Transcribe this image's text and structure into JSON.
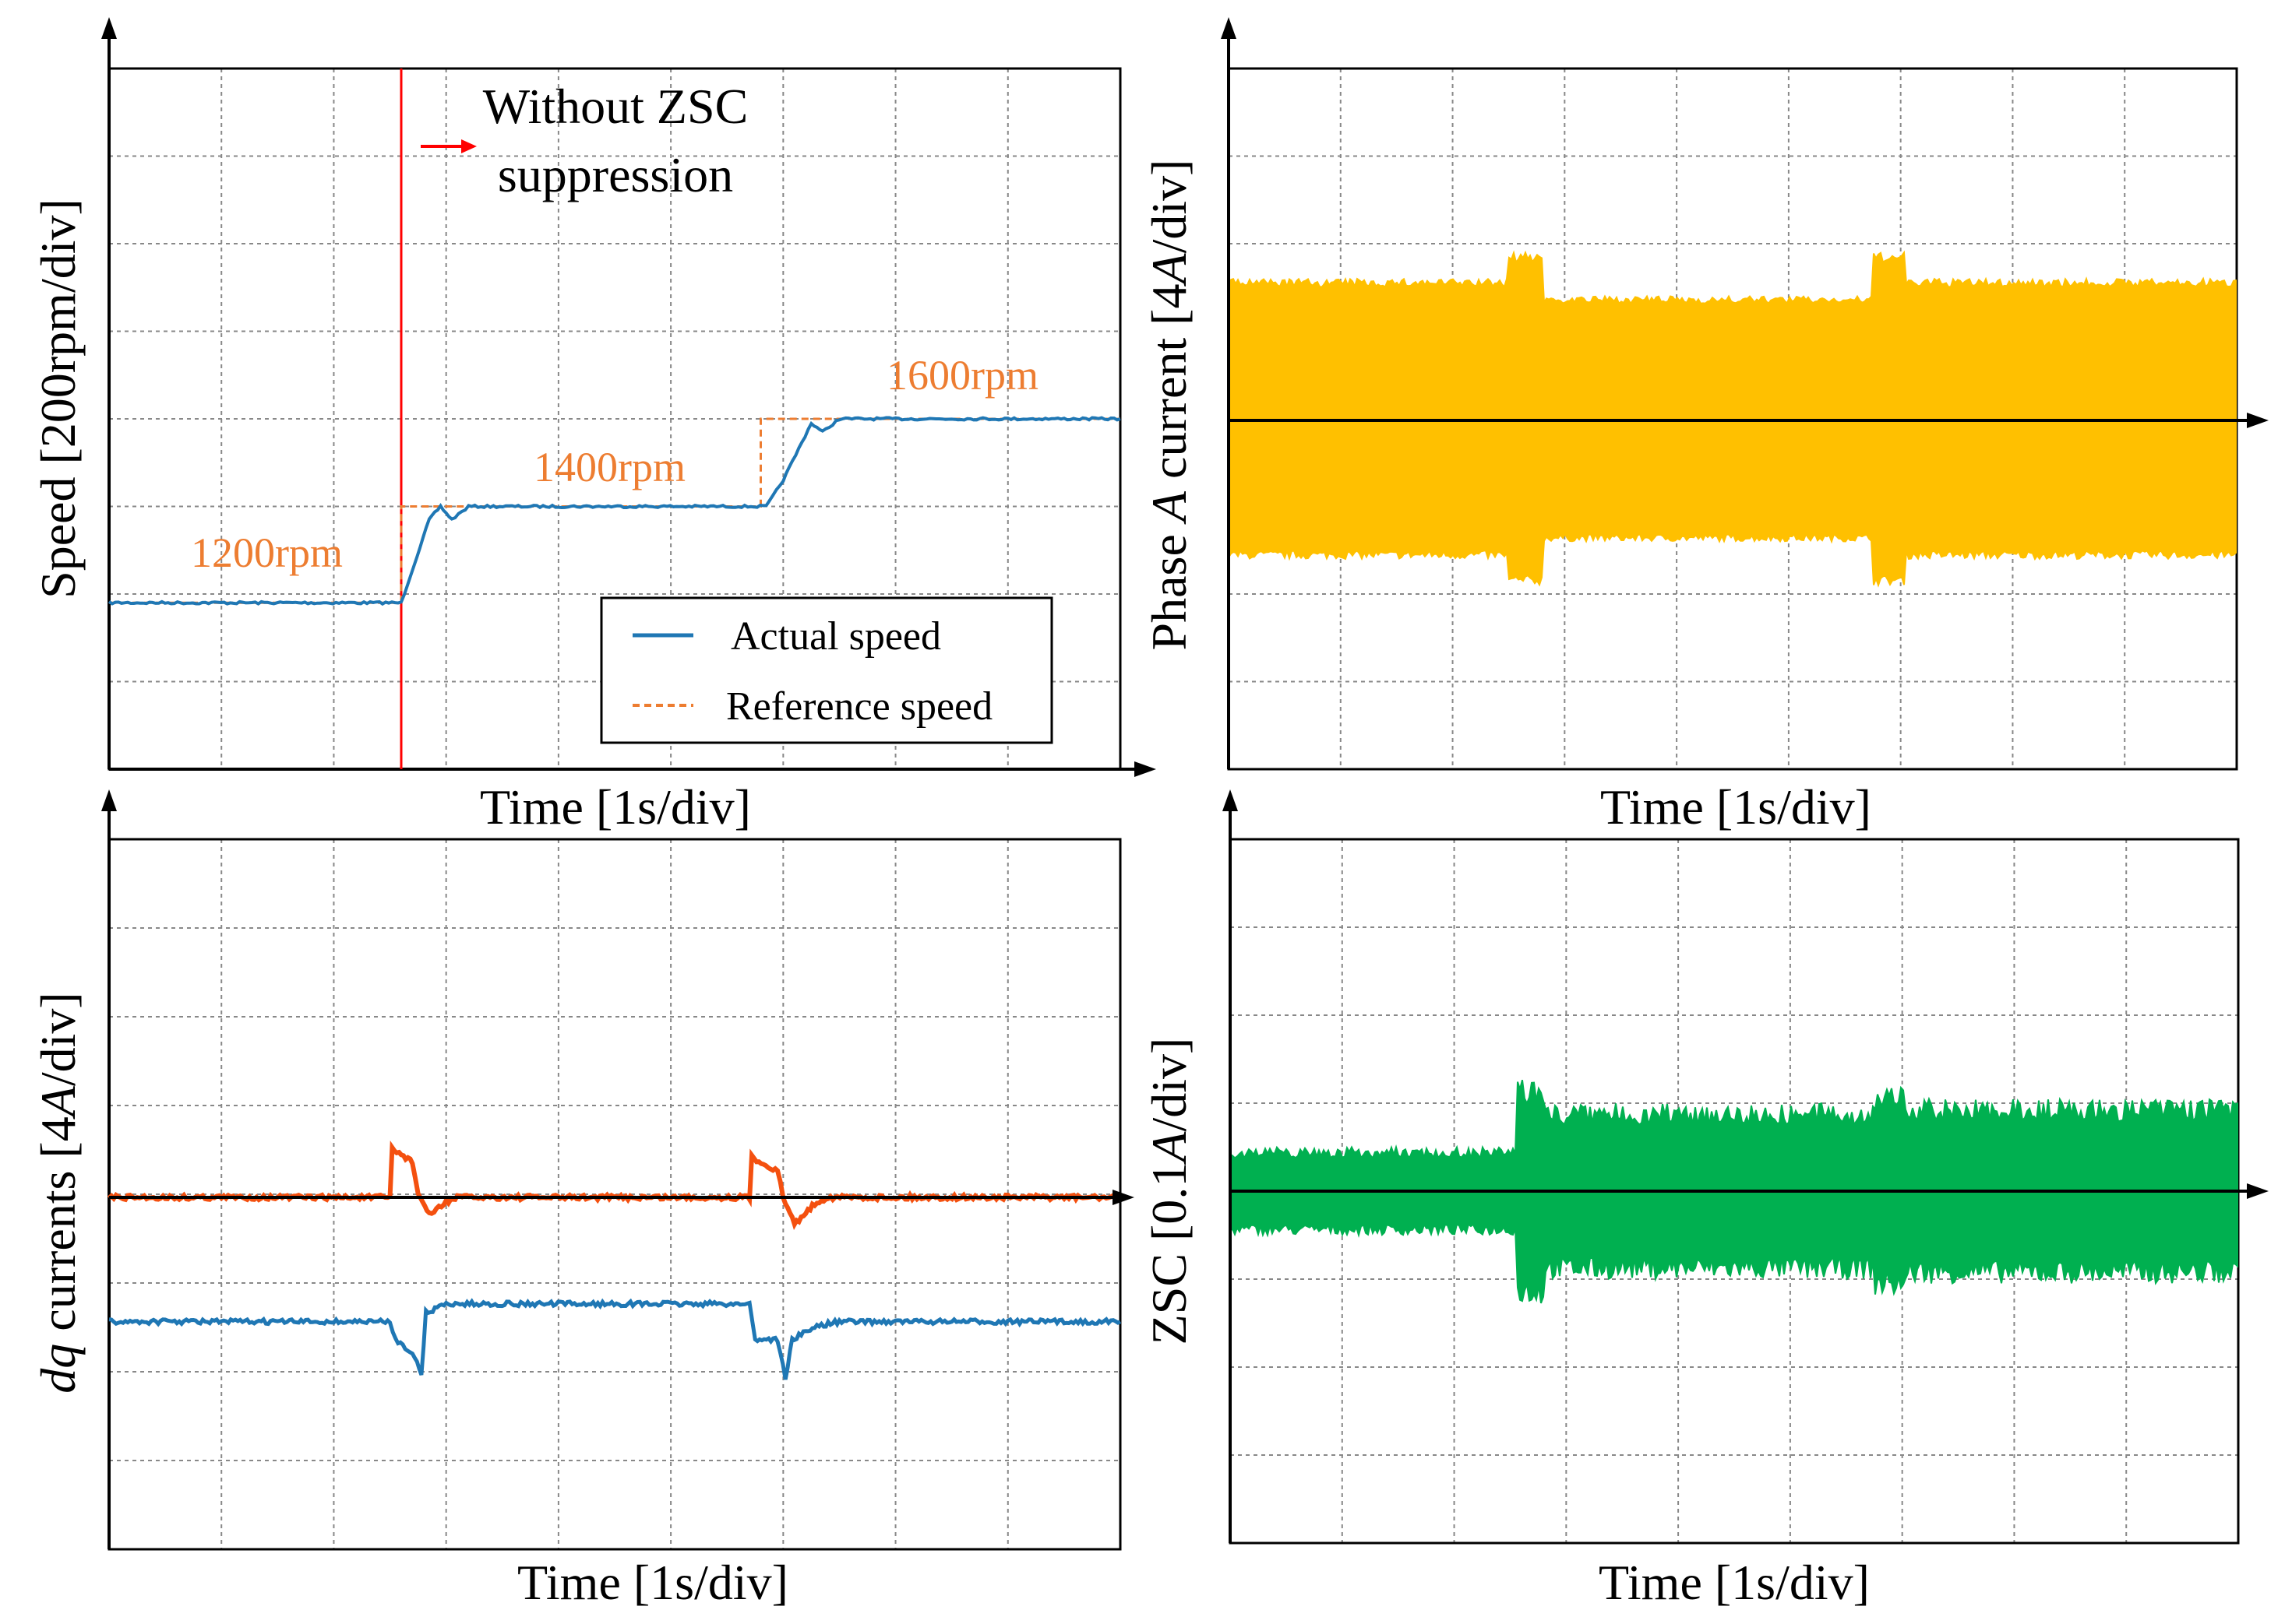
{
  "chart_data": [
    {
      "type": "line",
      "panel": "top-left",
      "xlabel": "Time [1s/div]",
      "ylabel": "Speed [200rpm/div]",
      "x_divisions": 9,
      "y_divisions": 8,
      "grid": true,
      "legend": {
        "placement": "bottom-right",
        "entries": [
          "Actual speed",
          "Reference speed"
        ]
      },
      "colors": {
        "actual": "#1f77b4",
        "reference": "#ed7d31",
        "marker": "#ff0000"
      },
      "annotations": {
        "event_text": [
          "Without ZSC",
          "suppression"
        ],
        "event_time_div": 2.6,
        "speed_labels": [
          "1200rpm",
          "1400rpm",
          "1600rpm"
        ]
      },
      "series": [
        {
          "name": "Actual speed",
          "style": "solid",
          "points_div": [
            [
              0,
              1.9
            ],
            [
              2.6,
              1.9
            ],
            [
              2.85,
              2.85
            ],
            [
              2.95,
              3.0
            ],
            [
              3.05,
              2.85
            ],
            [
              3.2,
              3.0
            ],
            [
              5.85,
              3.0
            ],
            [
              6.0,
              3.3
            ],
            [
              6.25,
              3.95
            ],
            [
              6.35,
              3.85
            ],
            [
              6.5,
              4.0
            ],
            [
              9,
              4.0
            ]
          ]
        },
        {
          "name": "Reference speed",
          "style": "dashed",
          "points_div": [
            [
              0,
              1.9
            ],
            [
              2.6,
              1.9
            ],
            [
              2.6,
              3.0
            ],
            [
              5.8,
              3.0
            ],
            [
              5.8,
              4.0
            ],
            [
              9,
              4.0
            ]
          ]
        }
      ]
    },
    {
      "type": "line",
      "panel": "top-right",
      "xlabel": "Time [1s/div]",
      "ylabel": "Phase A current [4A/div]",
      "x_divisions": 9,
      "y_divisions": 8,
      "grid": true,
      "colors": {
        "trace": "#ffc000"
      },
      "envelope_div": {
        "segments": [
          {
            "t": [
              0,
              2.5
            ],
            "amplitude": 1.6
          },
          {
            "t": [
              2.5,
              2.8
            ],
            "amplitude": 1.9
          },
          {
            "t": [
              2.8,
              5.75
            ],
            "amplitude": 1.4
          },
          {
            "t": [
              5.75,
              6.05
            ],
            "amplitude": 1.9
          },
          {
            "t": [
              6.05,
              9
            ],
            "amplitude": 1.6
          }
        ]
      }
    },
    {
      "type": "line",
      "panel": "bottom-left",
      "xlabel": "Time [1s/div]",
      "ylabel": "dq currents [4A/div]",
      "ylabel_parts": {
        "italic": "dq",
        "rest": " currents [4",
        "unit_italic": "A",
        "tail": "/div]"
      },
      "x_divisions": 9,
      "y_divisions": 8,
      "grid": true,
      "colors": {
        "d_current": "#f4500f",
        "q_current": "#1f77b4"
      },
      "series": [
        {
          "name": "",
          "color_key": "d_current",
          "points_div": [
            [
              0,
              0
            ],
            [
              2.5,
              0
            ],
            [
              2.52,
              0.55
            ],
            [
              2.7,
              0.4
            ],
            [
              2.75,
              0.05
            ],
            [
              2.85,
              -0.2
            ],
            [
              3.0,
              -0.05
            ],
            [
              3.1,
              0
            ],
            [
              5.7,
              0
            ],
            [
              5.72,
              0.45
            ],
            [
              5.95,
              0.3
            ],
            [
              6.0,
              0
            ],
            [
              6.1,
              -0.3
            ],
            [
              6.3,
              -0.05
            ],
            [
              6.4,
              0
            ],
            [
              9,
              0
            ]
          ]
        },
        {
          "name": "",
          "color_key": "q_current",
          "points_div": [
            [
              0,
              -1.4
            ],
            [
              2.5,
              -1.4
            ],
            [
              2.55,
              -1.6
            ],
            [
              2.7,
              -1.75
            ],
            [
              2.78,
              -2.0
            ],
            [
              2.82,
              -1.3
            ],
            [
              3.0,
              -1.2
            ],
            [
              5.7,
              -1.2
            ],
            [
              5.75,
              -1.6
            ],
            [
              5.95,
              -1.6
            ],
            [
              6.02,
              -2.05
            ],
            [
              6.08,
              -1.6
            ],
            [
              6.3,
              -1.45
            ],
            [
              6.5,
              -1.4
            ],
            [
              9,
              -1.4
            ]
          ]
        }
      ]
    },
    {
      "type": "line",
      "panel": "bottom-right",
      "xlabel": "Time [1s/div]",
      "ylabel": "ZSC [0.1A/div]",
      "ylabel_parts": {
        "rest": "ZSC [0.1",
        "unit_italic": "A",
        "tail": "/div]"
      },
      "x_divisions": 9,
      "y_divisions": 8,
      "grid": true,
      "colors": {
        "trace": "#00b050"
      },
      "envelope_div": {
        "segments": [
          {
            "t": [
              0,
              2.55
            ],
            "amplitude": 0.5
          },
          {
            "t": [
              2.55,
              2.8
            ],
            "amplitude": 1.3
          },
          {
            "t": [
              2.8,
              5.75
            ],
            "amplitude": 1.0
          },
          {
            "t": [
              5.75,
              6.05
            ],
            "amplitude": 1.2
          },
          {
            "t": [
              6.05,
              9
            ],
            "amplitude": 1.05
          }
        ]
      }
    }
  ],
  "axis_labels": {
    "time": "Time [1s/div]",
    "speed": "Speed [200rpm/div]",
    "phase_a_prefix": "Phase ",
    "phase_a_italic": "A",
    "phase_a_mid": " current [4",
    "phase_a_unit": "A",
    "phase_a_tail": "/div]"
  }
}
